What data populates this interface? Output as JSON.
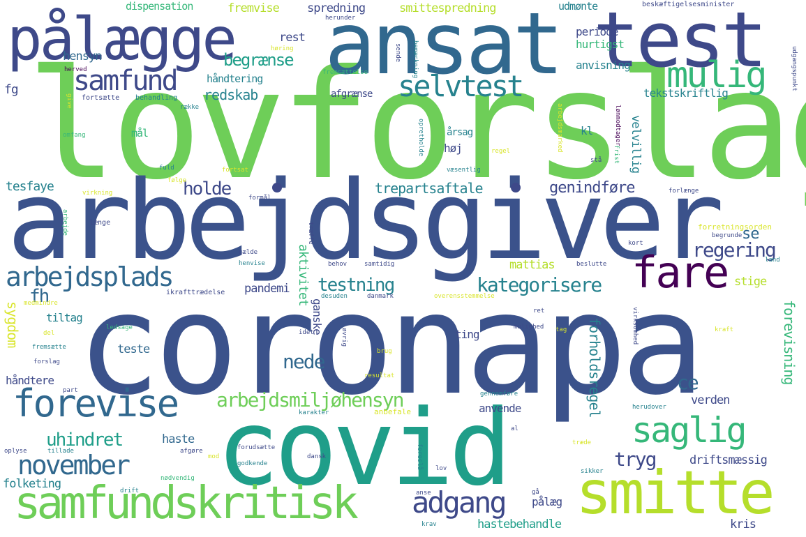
{
  "palette": {
    "darkpurple": "#440154",
    "navy": "#3e4989",
    "blue": "#31688e",
    "teal": "#26828e",
    "tealgreen": "#1f9e89",
    "green": "#35b779",
    "lightgreen": "#6ece58",
    "yellowgreen": "#b5de2b",
    "yellow": "#d9e52c",
    "blueviolet": "#3b528b",
    "mid": "#2a788e"
  },
  "words": [
    {
      "text": "lovforslag",
      "color": "#6ece58"
    },
    {
      "text": "arbejdsgiver",
      "color": "#3b528b"
    },
    {
      "text": "coronapa",
      "color": "#3b528b"
    },
    {
      "text": "covid",
      "color": "#1f9e89"
    },
    {
      "text": "ansat",
      "color": "#31688e"
    },
    {
      "text": "test",
      "color": "#3e4989"
    },
    {
      "text": "pålægge",
      "color": "#3e4989"
    },
    {
      "text": "smitte",
      "color": "#b5de2b"
    },
    {
      "text": "samfundskritisk",
      "color": "#6ece58"
    },
    {
      "text": "forevise",
      "color": "#31688e"
    },
    {
      "text": "fare",
      "color": "#440154"
    },
    {
      "text": "mulig",
      "color": "#35b779"
    },
    {
      "text": "saglig",
      "color": "#35b779"
    },
    {
      "text": "selvtest",
      "color": "#26828e"
    },
    {
      "text": "samfund",
      "color": "#3e4989"
    },
    {
      "text": "november",
      "color": "#31688e"
    },
    {
      "text": "arbejdsplads",
      "color": "#31688e"
    },
    {
      "text": "adgang",
      "color": "#3e4989"
    },
    {
      "text": "arbejdsmiljøhensyn",
      "color": "#6ece58"
    },
    {
      "text": "kategorisere",
      "color": "#26828e"
    },
    {
      "text": "holde",
      "color": "#3e4989"
    },
    {
      "text": "testning",
      "color": "#26828e"
    },
    {
      "text": "regering",
      "color": "#3e4989"
    },
    {
      "text": "trepartsaftale",
      "color": "#26828e"
    },
    {
      "text": "genindføre",
      "color": "#3e4989"
    },
    {
      "text": "uhindret",
      "color": "#1f9e89"
    },
    {
      "text": "tryg",
      "color": "#3e4989"
    },
    {
      "text": "nede",
      "color": "#31688e"
    },
    {
      "text": "ce",
      "color": "#31688e"
    },
    {
      "text": "se",
      "color": "#31688e"
    },
    {
      "text": "fh",
      "color": "#31688e"
    },
    {
      "text": "begrænse",
      "color": "#1f9e89"
    },
    {
      "text": "redskab",
      "color": "#26828e"
    },
    {
      "text": "fremvise",
      "color": "#b5de2b"
    },
    {
      "text": "spredning",
      "color": "#3e4989"
    },
    {
      "text": "smittespredning",
      "color": "#b5de2b"
    },
    {
      "text": "dispensation",
      "color": "#35b779"
    },
    {
      "text": "udmønte",
      "color": "#26828e"
    },
    {
      "text": "beskæftigelsesminister",
      "color": "#3e4989"
    },
    {
      "text": "rest",
      "color": "#3e4989"
    },
    {
      "text": "periode",
      "color": "#3e4989"
    },
    {
      "text": "hurtigst",
      "color": "#35b779"
    },
    {
      "text": "hensyn",
      "color": "#31688e"
    },
    {
      "text": "håndtering",
      "color": "#26828e"
    },
    {
      "text": "anvisning",
      "color": "#26828e"
    },
    {
      "text": "afgrænse",
      "color": "#3e4989"
    },
    {
      "text": "tekstskriftlig",
      "color": "#26828e"
    },
    {
      "text": "fg",
      "color": "#3e4989"
    },
    {
      "text": "mål",
      "color": "#35b779"
    },
    {
      "text": "årsag",
      "color": "#26828e"
    },
    {
      "text": "høj",
      "color": "#3e4989"
    },
    {
      "text": "kl",
      "color": "#26828e"
    },
    {
      "text": "tesfaye",
      "color": "#26828e"
    },
    {
      "text": "mattias",
      "color": "#b5de2b"
    },
    {
      "text": "pandemi",
      "color": "#3e4989"
    },
    {
      "text": "stige",
      "color": "#b5de2b"
    },
    {
      "text": "tiltag",
      "color": "#26828e"
    },
    {
      "text": "teste",
      "color": "#31688e"
    },
    {
      "text": "ting",
      "color": "#3e4989"
    },
    {
      "text": "håndtere",
      "color": "#3e4989"
    },
    {
      "text": "anvende",
      "color": "#3e4989"
    },
    {
      "text": "verden",
      "color": "#3e4989"
    },
    {
      "text": "haste",
      "color": "#31688e"
    },
    {
      "text": "driftsmæssig",
      "color": "#3e4989"
    },
    {
      "text": "folketing",
      "color": "#26828e"
    },
    {
      "text": "hastebehandle",
      "color": "#1f9e89"
    },
    {
      "text": "kris",
      "color": "#3e4989"
    },
    {
      "text": "pålæg",
      "color": "#3e4989"
    },
    {
      "text": "aktivitet",
      "color": "#35b779"
    },
    {
      "text": "ganske",
      "color": "#3e4989"
    },
    {
      "text": "sygdom",
      "color": "#d9e52c"
    },
    {
      "text": "forholdsregel",
      "color": "#26828e"
    },
    {
      "text": "forevisning",
      "color": "#35b779"
    },
    {
      "text": "velvillig",
      "color": "#26828e"
    },
    {
      "text": "herunder",
      "color": "#3e4989"
    },
    {
      "text": "høring",
      "color": "#d9e52c"
    },
    {
      "text": "herved",
      "color": "#440154"
    },
    {
      "text": "fremsættelse",
      "color": "#35b779"
    },
    {
      "text": "sende",
      "color": "#3e4989"
    },
    {
      "text": "bemærkning",
      "color": "#26828e"
    },
    {
      "text": "udgangspunkt",
      "color": "#3e4989"
    },
    {
      "text": "fortsætte",
      "color": "#3e4989"
    },
    {
      "text": "behandling",
      "color": "#26828e"
    },
    {
      "text": "give",
      "color": "#d9e52c"
    },
    {
      "text": "række",
      "color": "#26828e"
    },
    {
      "text": "arbejdsmarked",
      "color": "#d9e52c"
    },
    {
      "text": "lønmodtager",
      "color": "#440154"
    },
    {
      "text": "omfang",
      "color": "#35b779"
    },
    {
      "text": "opretholde",
      "color": "#26828e"
    },
    {
      "text": "regel",
      "color": "#d9e52c"
    },
    {
      "text": "frist",
      "color": "#35b779"
    },
    {
      "text": "stå",
      "color": "#3e4989"
    },
    {
      "text": "fuld",
      "color": "#26828e"
    },
    {
      "text": "fortsat",
      "color": "#d9e52c"
    },
    {
      "text": "væsentlig",
      "color": "#26828e"
    },
    {
      "text": "følge",
      "color": "#d9e52c"
    },
    {
      "text": "virkning",
      "color": "#d9e52c"
    },
    {
      "text": "formål",
      "color": "#3e4989"
    },
    {
      "text": "forlænge",
      "color": "#3e4989"
    },
    {
      "text": "længe",
      "color": "#3e4989"
    },
    {
      "text": "arbejde",
      "color": "#35b779"
    },
    {
      "text": "forretningsorden",
      "color": "#d9e52c"
    },
    {
      "text": "begrunde",
      "color": "#3e4989"
    },
    {
      "text": "træffe",
      "color": "#3e4989"
    },
    {
      "text": "kort",
      "color": "#3e4989"
    },
    {
      "text": "gælde",
      "color": "#3e4989"
    },
    {
      "text": "henvise",
      "color": "#26828e"
    },
    {
      "text": "behov",
      "color": "#3e4989"
    },
    {
      "text": "samtidig",
      "color": "#3e4989"
    },
    {
      "text": "beslutte",
      "color": "#3e4989"
    },
    {
      "text": "land",
      "color": "#26828e"
    },
    {
      "text": "ikrafttrædelse",
      "color": "#3e4989"
    },
    {
      "text": "desuden",
      "color": "#26828e"
    },
    {
      "text": "danmark",
      "color": "#3e4989"
    },
    {
      "text": "overensstemmelse",
      "color": "#d9e52c"
    },
    {
      "text": "medmindre",
      "color": "#d9e52c"
    },
    {
      "text": "ret",
      "color": "#3e4989"
    },
    {
      "text": "virksomhed",
      "color": "#3e4989"
    },
    {
      "text": "del",
      "color": "#d9e52c"
    },
    {
      "text": "ledsage",
      "color": "#35b779"
    },
    {
      "text": "mulighed",
      "color": "#3e4989"
    },
    {
      "text": "tag",
      "color": "#d9e52c"
    },
    {
      "text": "kraft",
      "color": "#d9e52c"
    },
    {
      "text": "idet",
      "color": "#3e4989"
    },
    {
      "text": "øvrig",
      "color": "#3e4989"
    },
    {
      "text": "fremsætte",
      "color": "#26828e"
    },
    {
      "text": "brug",
      "color": "#d9e52c"
    },
    {
      "text": "forslag",
      "color": "#3e4989"
    },
    {
      "text": "resultat",
      "color": "#d9e52c"
    },
    {
      "text": "part",
      "color": "#3e4989"
    },
    {
      "text": "gennemføre",
      "color": "#26828e"
    },
    {
      "text": "karakter",
      "color": "#26828e"
    },
    {
      "text": "anbefale",
      "color": "#d9e52c"
    },
    {
      "text": "herudover",
      "color": "#26828e"
    },
    {
      "text": "al",
      "color": "#3e4989"
    },
    {
      "text": "oplyse",
      "color": "#3e4989"
    },
    {
      "text": "tillade",
      "color": "#26828e"
    },
    {
      "text": "afgøre",
      "color": "#3e4989"
    },
    {
      "text": "mod",
      "color": "#d9e52c"
    },
    {
      "text": "forudsætte",
      "color": "#3e4989"
    },
    {
      "text": "godkende",
      "color": "#26828e"
    },
    {
      "text": "dansk",
      "color": "#3e4989"
    },
    {
      "text": "foreslå",
      "color": "#26828e"
    },
    {
      "text": "træde",
      "color": "#d9e52c"
    },
    {
      "text": "nødvendig",
      "color": "#35b779"
    },
    {
      "text": "lov",
      "color": "#3e4989"
    },
    {
      "text": "sikker",
      "color": "#26828e"
    },
    {
      "text": "drift",
      "color": "#26828e"
    },
    {
      "text": "anse",
      "color": "#3e4989"
    },
    {
      "text": "gå",
      "color": "#3e4989"
    },
    {
      "text": "krav",
      "color": "#26828e"
    }
  ]
}
